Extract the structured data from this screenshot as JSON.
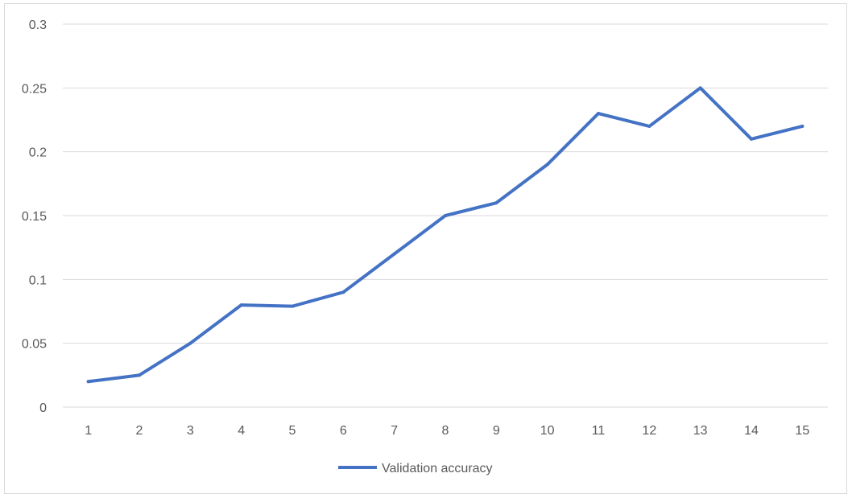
{
  "chart_data": {
    "type": "line",
    "title": "",
    "xlabel": "",
    "ylabel": "",
    "categories": [
      "1",
      "2",
      "3",
      "4",
      "5",
      "6",
      "7",
      "8",
      "9",
      "10",
      "11",
      "12",
      "13",
      "14",
      "15"
    ],
    "yticks": [
      "0",
      "0.05",
      "0.1",
      "0.15",
      "0.2",
      "0.25",
      "0.3"
    ],
    "ylim": [
      0,
      0.3
    ],
    "grid": true,
    "legend_position": "bottom",
    "series": [
      {
        "name": "Validation accuracy",
        "color": "#4472c4",
        "values": [
          0.02,
          0.025,
          0.05,
          0.08,
          0.079,
          0.09,
          0.12,
          0.15,
          0.16,
          0.19,
          0.23,
          0.22,
          0.25,
          0.21,
          0.22
        ]
      }
    ]
  }
}
